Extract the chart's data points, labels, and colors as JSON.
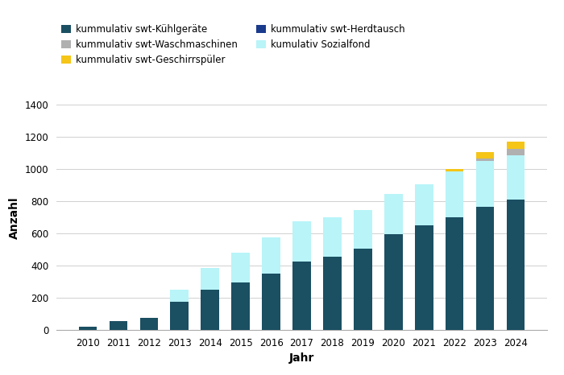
{
  "years": [
    2010,
    2011,
    2012,
    2013,
    2014,
    2015,
    2016,
    2017,
    2018,
    2019,
    2020,
    2021,
    2022,
    2023,
    2024
  ],
  "kuehlgeraete": [
    20,
    55,
    75,
    175,
    250,
    295,
    350,
    425,
    455,
    505,
    595,
    650,
    700,
    765,
    810
  ],
  "waschmaschinen": [
    0,
    0,
    0,
    0,
    0,
    0,
    0,
    0,
    0,
    0,
    0,
    0,
    0,
    15,
    40
  ],
  "geschirrspueler": [
    0,
    0,
    0,
    0,
    0,
    0,
    0,
    0,
    0,
    0,
    0,
    0,
    15,
    40,
    45
  ],
  "herdtausch": [
    0,
    0,
    0,
    0,
    0,
    0,
    0,
    0,
    0,
    0,
    0,
    0,
    0,
    0,
    0
  ],
  "sozialfond": [
    0,
    0,
    0,
    75,
    135,
    185,
    225,
    250,
    245,
    240,
    250,
    255,
    285,
    285,
    275
  ],
  "color_kuehlgeraete": "#1b4f62",
  "color_waschmaschinen": "#b0b0b0",
  "color_geschirrspueler": "#f5c518",
  "color_herdtausch": "#1a3a8c",
  "color_sozialfond": "#b8f4f8",
  "xlabel": "Jahr",
  "ylabel": "Anzahl",
  "ylim": [
    0,
    1400
  ],
  "yticks": [
    0,
    200,
    400,
    600,
    800,
    1000,
    1200,
    1400
  ],
  "legend_labels": [
    "kummulativ swt-Kühlgeräte",
    "kummulativ swt-Waschmaschinen",
    "kummulativ swt-Geschirrspüler",
    "kummulativ swt-Herdtausch",
    "kumulativ Sozialfond"
  ],
  "grid_color": "#d0d0d0"
}
